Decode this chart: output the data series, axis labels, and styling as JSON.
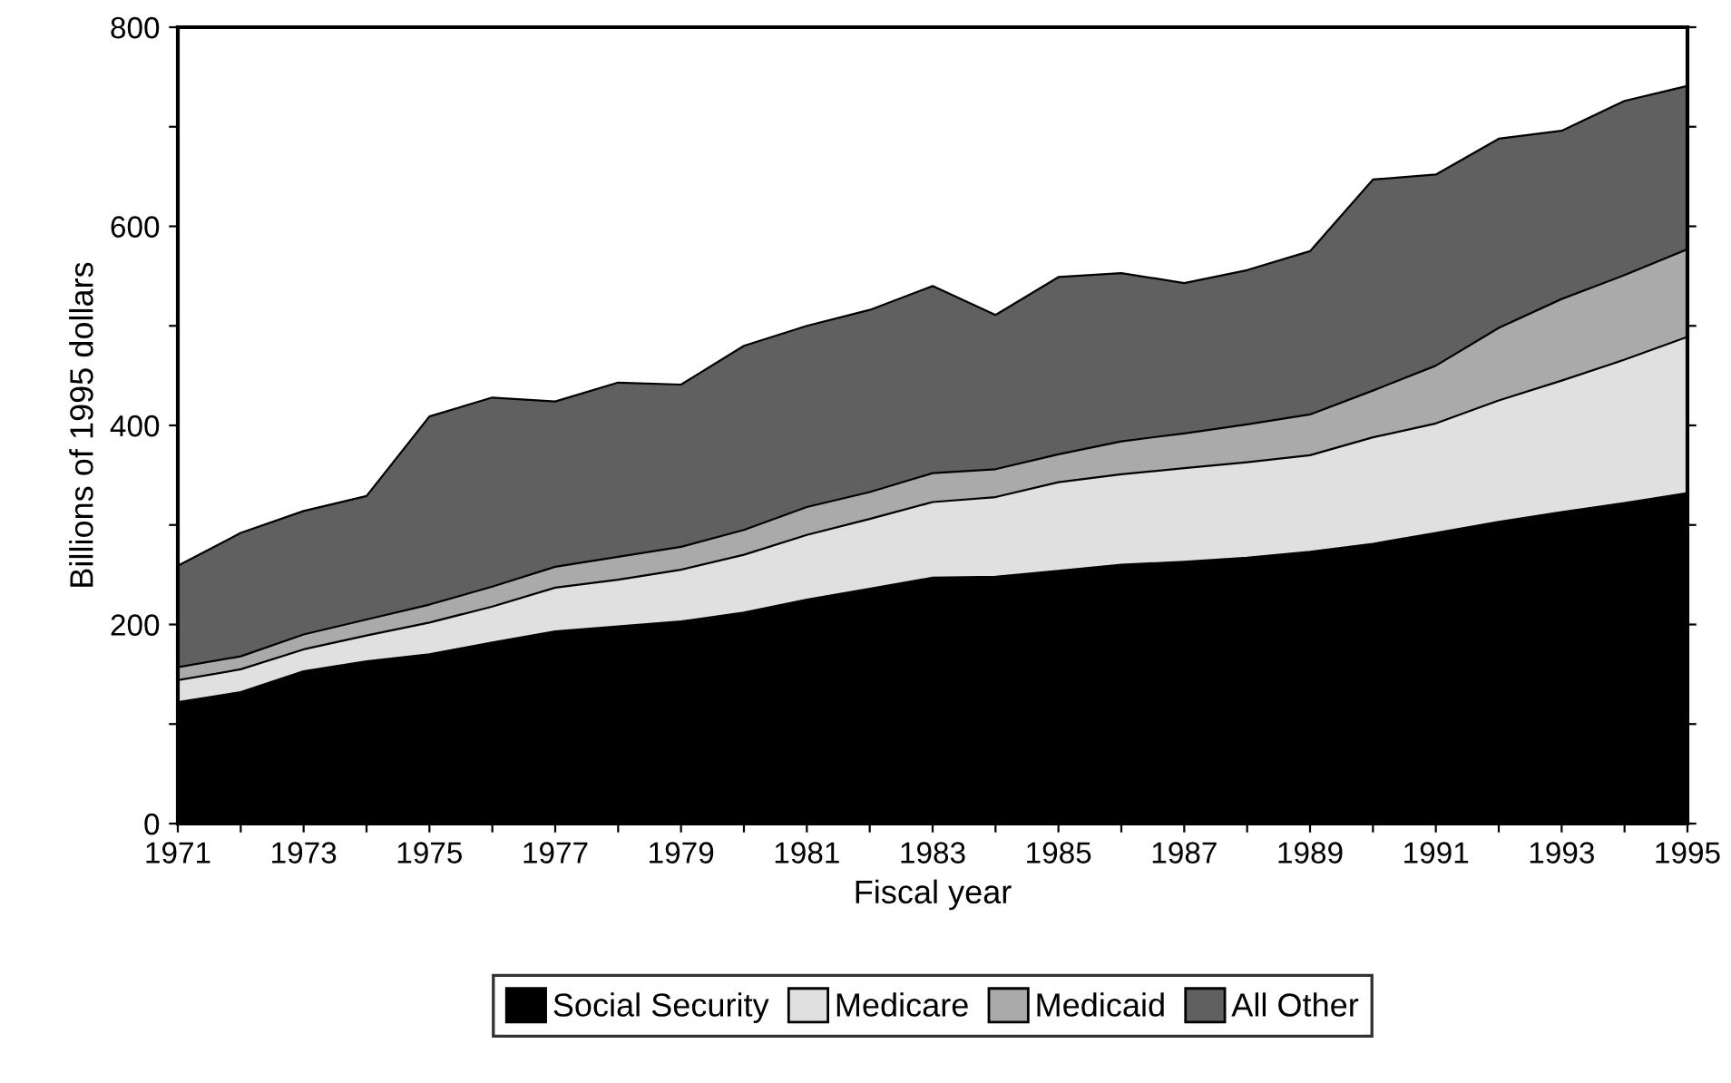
{
  "chart_data": {
    "type": "area",
    "stacked": true,
    "xlabel": "Fiscal year",
    "ylabel": "Billions of 1995 dollars",
    "x": [
      1971,
      1972,
      1973,
      1974,
      1975,
      1976,
      1977,
      1978,
      1979,
      1980,
      1981,
      1982,
      1983,
      1984,
      1985,
      1986,
      1987,
      1988,
      1989,
      1990,
      1991,
      1992,
      1993,
      1994,
      1995
    ],
    "series": [
      {
        "name": "Social Security",
        "color": "#000000",
        "values": [
          122,
          132,
          153,
          163,
          170,
          182,
          193,
          198,
          203,
          212,
          225,
          236,
          247,
          248,
          254,
          260,
          263,
          267,
          273,
          281,
          292,
          303,
          313,
          322,
          332
        ]
      },
      {
        "name": "Medicare",
        "color": "#e0e0e0",
        "values": [
          22,
          23,
          22,
          26,
          32,
          36,
          44,
          47,
          52,
          58,
          65,
          70,
          76,
          80,
          89,
          91,
          94,
          96,
          97,
          107,
          110,
          122,
          132,
          144,
          157
        ]
      },
      {
        "name": "Medicaid",
        "color": "#aaaaaa",
        "values": [
          13,
          13,
          15,
          16,
          18,
          20,
          21,
          23,
          23,
          25,
          28,
          27,
          29,
          28,
          28,
          33,
          35,
          38,
          41,
          47,
          58,
          73,
          82,
          85,
          88
        ]
      },
      {
        "name": "All Other",
        "color": "#606060",
        "values": [
          102,
          124,
          124,
          124,
          189,
          190,
          166,
          175,
          163,
          185,
          182,
          183,
          188,
          155,
          178,
          169,
          151,
          155,
          164,
          212,
          192,
          190,
          169,
          175,
          164
        ]
      }
    ],
    "xlim": [
      1971,
      1995
    ],
    "xticks": [
      1971,
      {
        "value": 1972,
        "label": null
      },
      1973,
      {
        "value": 1974,
        "label": null
      },
      1975,
      {
        "value": 1976,
        "label": null
      },
      1977,
      {
        "value": 1978,
        "label": null
      },
      1979,
      {
        "value": 1980,
        "label": null
      },
      1981,
      {
        "value": 1982,
        "label": null
      },
      1983,
      {
        "value": 1984,
        "label": null
      },
      1985,
      {
        "value": 1986,
        "label": null
      },
      1987,
      {
        "value": 1988,
        "label": null
      },
      1989,
      {
        "value": 1990,
        "label": null
      },
      1991,
      {
        "value": 1992,
        "label": null
      },
      1993,
      {
        "value": 1994,
        "label": null
      },
      1995
    ],
    "ylim": [
      0,
      800
    ],
    "yticks": [
      0,
      {
        "value": 100,
        "label": null
      },
      200,
      {
        "value": 300,
        "label": null
      },
      400,
      {
        "value": 500,
        "label": null
      },
      600,
      {
        "value": 700,
        "label": null
      },
      800
    ],
    "grid": false,
    "legend": "bottom"
  }
}
